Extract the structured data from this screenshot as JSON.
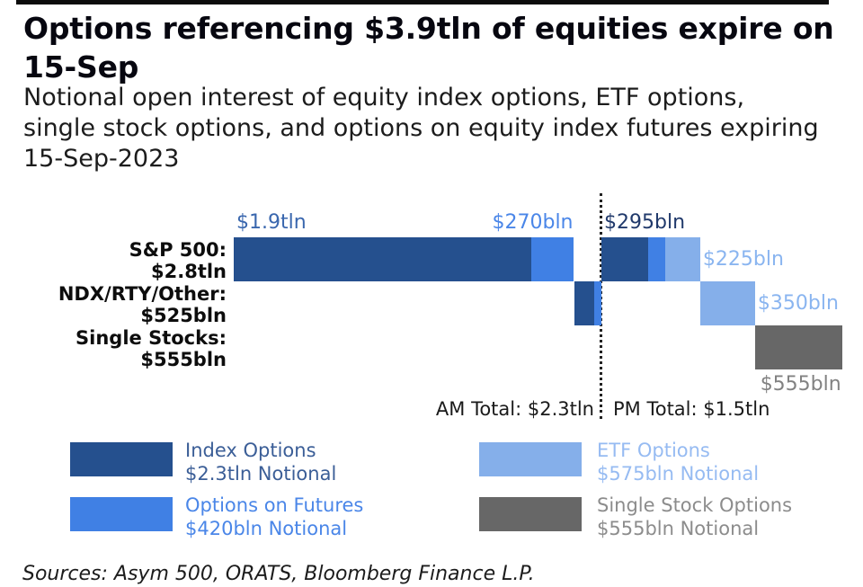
{
  "header": {
    "title_lines": [
      "Options referencing $3.9tln of equities expire on",
      "15-Sep"
    ],
    "subtitle_lines": [
      "Notional open interest of equity index options, ETF options,",
      "single stock options, and options on equity index futures expiring",
      "15-Sep-2023"
    ]
  },
  "colors": {
    "index_options": "#25508E",
    "options_on_futures": "#4080E4",
    "etf_options": "#85AFEA",
    "single_stock": "#676767",
    "label_index_am": "#3A67AE",
    "label_futures": "#4A86E8",
    "label_index_pm": "#20396B",
    "label_etf": "#8AB5F0",
    "label_single": "#828282",
    "legend_index_text": "#3B5E97",
    "legend_futures_text": "#4A86E8",
    "legend_etf_text": "#96BBF2",
    "legend_single_text": "#8C8C8C",
    "totals_text": "#1A1A1A"
  },
  "chart_data": {
    "type": "bar",
    "variant": "horizontal-waterfall",
    "unit": "notional, $bln",
    "x_axis": {
      "min": 0,
      "max": 3880,
      "visible": false
    },
    "session_divider": {
      "at": 2345,
      "label_value": "$2.3tln",
      "style": "dotted"
    },
    "am_total_label": "AM Total: $2.3tln",
    "pm_total_label": "PM Total: $1.5tln",
    "categories": [
      "S&P 500: $2.8tln",
      "NDX/RTY/Other: $525bln",
      "Single Stocks: $555bln"
    ],
    "rows": [
      {
        "label_line1": "S&P 500:",
        "label_line2": "$2.8tln",
        "total_bln": 2800,
        "segments": [
          {
            "type": "index_options",
            "session": "AM",
            "start": 0,
            "value": 1900
          },
          {
            "type": "options_on_futures",
            "session": "AM",
            "start": 1900,
            "value": 270
          },
          {
            "type": "index_options",
            "session": "PM",
            "start": 2345,
            "value": 295
          },
          {
            "type": "options_on_futures",
            "session": "PM",
            "start": 2640,
            "value": 110
          },
          {
            "type": "etf_options",
            "session": "PM",
            "start": 2750,
            "value": 225
          }
        ]
      },
      {
        "label_line1": "NDX/RTY/Other:",
        "label_line2": "$525bln",
        "total_bln": 525,
        "segments": [
          {
            "type": "index_options",
            "session": "AM",
            "start": 2170,
            "value": 130
          },
          {
            "type": "options_on_futures",
            "session": "AM",
            "start": 2300,
            "value": 45
          },
          {
            "type": "etf_options",
            "session": "PM",
            "start": 2975,
            "value": 350
          }
        ]
      },
      {
        "label_line1": "Single Stocks:",
        "label_line2": "$555bln",
        "total_bln": 555,
        "segments": [
          {
            "type": "single_stock",
            "session": "PM",
            "start": 3325,
            "value": 555
          }
        ]
      }
    ],
    "bar_labels": [
      {
        "text": "$1.9tln",
        "color": "label_index_am",
        "row": 0,
        "at": 0,
        "anchor": "left",
        "pos": "above"
      },
      {
        "text": "$270bln",
        "color": "label_futures",
        "row": 0,
        "at": 2170,
        "anchor": "right",
        "pos": "above"
      },
      {
        "text": "$295bln",
        "color": "label_index_pm",
        "row": 0,
        "at": 2345,
        "anchor": "left",
        "pos": "above"
      },
      {
        "text": "$225bln",
        "color": "label_etf",
        "row": 0,
        "at": 2975,
        "anchor": "left",
        "pos": "middle"
      },
      {
        "text": "$350bln",
        "color": "label_etf",
        "row": 1,
        "at": 3325,
        "anchor": "left",
        "pos": "middle"
      },
      {
        "text": "$555bln",
        "color": "label_single",
        "row": 2,
        "at": 3880,
        "anchor": "right",
        "pos": "below"
      }
    ]
  },
  "legend": {
    "items": [
      {
        "key": "index_options",
        "text_color": "legend_index_text",
        "line1": "Index Options",
        "line2": "$2.3tln Notional"
      },
      {
        "key": "options_on_futures",
        "text_color": "legend_futures_text",
        "line1": "Options on Futures",
        "line2": "$420bln Notional"
      },
      {
        "key": "etf_options",
        "text_color": "legend_etf_text",
        "line1": "ETF Options",
        "line2": "$575bln Notional"
      },
      {
        "key": "single_stock",
        "text_color": "legend_single_text",
        "line1": "Single Stock Options",
        "line2": "$555bln Notional"
      }
    ]
  },
  "footer": {
    "sources": "Sources: Asym 500, ORATS, Bloomberg Finance L.P."
  }
}
